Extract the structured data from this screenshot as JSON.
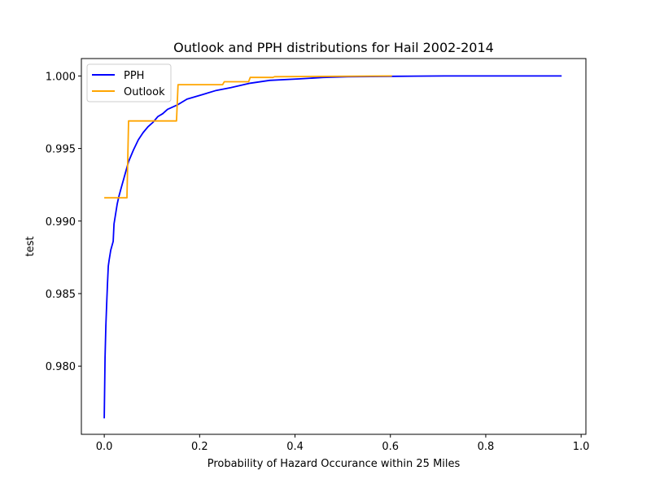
{
  "chart_data": {
    "type": "line",
    "title": "Outlook and PPH distributions for Hail 2002-2014",
    "xlabel": "Probability of Hazard Occurance within 25 Miles",
    "ylabel": "test",
    "xlim": [
      -0.048,
      1.01
    ],
    "ylim": [
      0.9753,
      1.0012
    ],
    "xticks": [
      0.0,
      0.2,
      0.4,
      0.6,
      0.8,
      1.0
    ],
    "xtick_labels": [
      "0.0",
      "0.2",
      "0.4",
      "0.6",
      "0.8",
      "1.0"
    ],
    "yticks": [
      0.98,
      0.985,
      0.99,
      0.995,
      1.0
    ],
    "ytick_labels": [
      "0.980",
      "0.985",
      "0.990",
      "0.995",
      "1.000"
    ],
    "legend_position": "top-left",
    "grid": false,
    "series": [
      {
        "name": "PPH",
        "color": "#0000ff",
        "x": [
          0.0,
          0.0017,
          0.0034,
          0.0051,
          0.0068,
          0.0085,
          0.0102,
          0.0136,
          0.0187,
          0.0204,
          0.0238,
          0.0272,
          0.0306,
          0.0357,
          0.0408,
          0.0459,
          0.051,
          0.0561,
          0.0612,
          0.0714,
          0.0816,
          0.0918,
          0.102,
          0.1122,
          0.1224,
          0.1327,
          0.1531,
          0.1735,
          0.2041,
          0.2347,
          0.2653,
          0.3061,
          0.3469,
          0.4082,
          0.4592,
          0.5102,
          0.6122,
          0.7143,
          0.8163,
          0.9184,
          0.9592
        ],
        "y": [
          0.9764,
          0.9806,
          0.9828,
          0.9843,
          0.9857,
          0.9869,
          0.9873,
          0.988,
          0.9886,
          0.9898,
          0.9905,
          0.9912,
          0.9917,
          0.9923,
          0.9929,
          0.9935,
          0.9941,
          0.9945,
          0.9949,
          0.9956,
          0.9961,
          0.9965,
          0.9968,
          0.9972,
          0.9974,
          0.9977,
          0.998,
          0.9984,
          0.9987,
          0.999,
          0.9992,
          0.9995,
          0.9997,
          0.9998,
          0.9999,
          0.99995,
          0.99998,
          1.0,
          1.0,
          1.0,
          1.0
        ]
      },
      {
        "name": "Outlook",
        "color": "#ffa500",
        "x": [
          0.0,
          0.0476,
          0.051,
          0.1514,
          0.1548,
          0.2483,
          0.2517,
          0.3027,
          0.3061,
          0.3537,
          0.3571,
          0.6034
        ],
        "y": [
          0.9916,
          0.9916,
          0.9969,
          0.9969,
          0.9994,
          0.9994,
          0.9996,
          0.9996,
          0.9999,
          0.9999,
          0.99995,
          1.0
        ]
      }
    ]
  }
}
